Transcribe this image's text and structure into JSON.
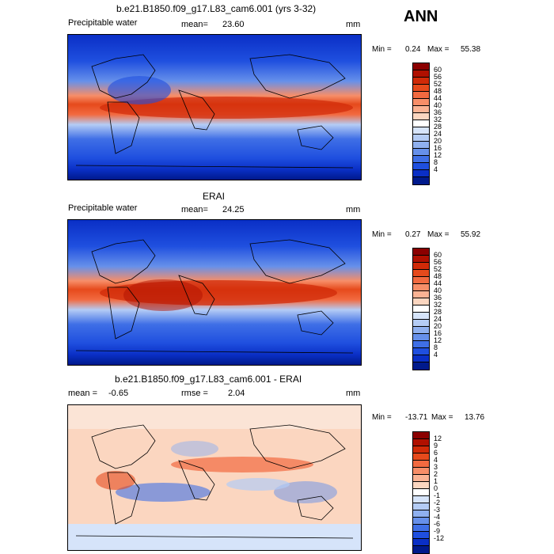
{
  "season": "ANN",
  "panels": [
    {
      "id": "model",
      "title": "b.e21.B1850.f09_g17.L83_cam6.001 (yrs 3-32)",
      "left_label": "Precipitable water",
      "mean_label": "mean=",
      "mean_value": "23.60",
      "units": "mm",
      "min_label": "Min =",
      "min_value": "0.24",
      "max_label": "Max =",
      "max_value": "55.38",
      "colorbar": {
        "labels": [
          "60",
          "56",
          "52",
          "48",
          "44",
          "40",
          "36",
          "32",
          "28",
          "24",
          "20",
          "16",
          "12",
          "8",
          "4"
        ],
        "colors": [
          "#8b0000",
          "#b01000",
          "#d02a08",
          "#e64a1c",
          "#f26a40",
          "#f78e68",
          "#fab394",
          "#fbd6c0",
          "#ffffff",
          "#d6e4fa",
          "#b4ccf5",
          "#8fb0ef",
          "#6690ea",
          "#3f6fe6",
          "#1f4fdf",
          "#0a2fc6",
          "#001a8c"
        ]
      },
      "map_colors": {
        "ocean_tropics": "#e8501e",
        "ocean_mid": "#6f9cf2",
        "ocean_high": "#1f45d8",
        "polar": "#00148a"
      }
    },
    {
      "id": "obs",
      "title": "ERAI",
      "left_label": "Precipitable water",
      "mean_label": "mean=",
      "mean_value": "24.25",
      "units": "mm",
      "min_label": "Min =",
      "min_value": "0.27",
      "max_label": "Max =",
      "max_value": "55.92",
      "colorbar": {
        "labels": [
          "60",
          "56",
          "52",
          "48",
          "44",
          "40",
          "36",
          "32",
          "28",
          "24",
          "20",
          "16",
          "12",
          "8",
          "4"
        ],
        "colors": [
          "#8b0000",
          "#b01000",
          "#d02a08",
          "#e64a1c",
          "#f26a40",
          "#f78e68",
          "#fab394",
          "#fbd6c0",
          "#ffffff",
          "#d6e4fa",
          "#b4ccf5",
          "#8fb0ef",
          "#6690ea",
          "#3f6fe6",
          "#1f4fdf",
          "#0a2fc6",
          "#001a8c"
        ]
      }
    },
    {
      "id": "diff",
      "title": "b.e21.B1850.f09_g17.L83_cam6.001 - ERAI",
      "left_label": "mean =",
      "mean_label": "-0.65",
      "mean_value": "",
      "rmse_label": "rmse =",
      "rmse_value": "2.04",
      "units": "mm",
      "min_label": "Min =",
      "min_value": "-13.71",
      "max_label": "Max =",
      "max_value": "13.76",
      "colorbar": {
        "labels": [
          "12",
          "9",
          "6",
          "4",
          "3",
          "2",
          "1",
          "0",
          "-1",
          "-2",
          "-3",
          "-4",
          "-6",
          "-9",
          "-12"
        ],
        "colors": [
          "#8b0000",
          "#b01000",
          "#d02a08",
          "#e64a1c",
          "#f26a40",
          "#f78e68",
          "#fab394",
          "#fbd6c0",
          "#ffffff",
          "#d6e4fa",
          "#b4ccf5",
          "#8fb0ef",
          "#6690ea",
          "#3f6fe6",
          "#1f4fdf",
          "#0a2fc6",
          "#001a8c"
        ]
      }
    }
  ]
}
